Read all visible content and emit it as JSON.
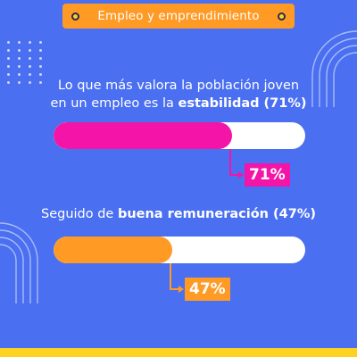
{
  "header": {
    "tag_label": "Empleo y emprendimiento"
  },
  "headline_1": {
    "pre": "Lo que más valora la población joven",
    "mid": "en un empleo es la ",
    "bold": "estabilidad (71%)"
  },
  "headline_2": {
    "pre": "Seguido de ",
    "bold": "buena remuneración (47%)"
  },
  "colors": {
    "background": "#4a6ff0",
    "track": "#ffffff",
    "stability": "#f414a8",
    "remuneration": "#ff9a25",
    "tag": "#ff9a25",
    "accent": "#ffd21f"
  },
  "chart_data": {
    "type": "bar",
    "orientation": "horizontal",
    "categories": [
      "estabilidad",
      "buena remuneración"
    ],
    "values": [
      71,
      47
    ],
    "value_labels": [
      "71%",
      "47%"
    ],
    "xlim": [
      0,
      100
    ]
  }
}
